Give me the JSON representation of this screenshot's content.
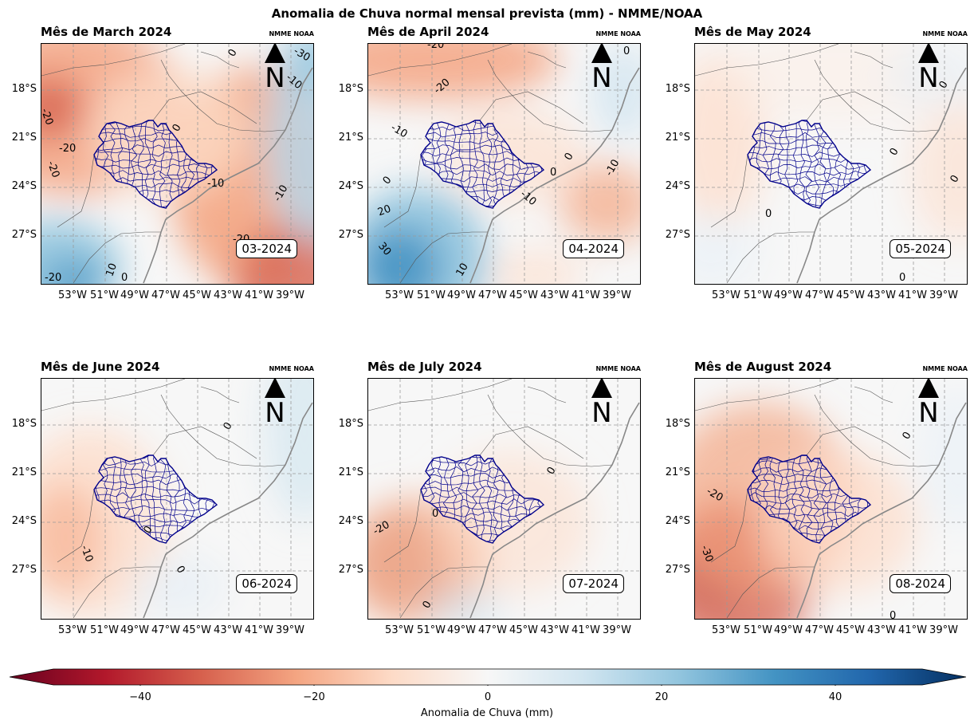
{
  "figure": {
    "title": "Anomalia de Chuva normal mensal prevista (mm) - NMME/NOAA",
    "credit": "NMME NOAA",
    "north_label": "N",
    "colormap": "RdBu",
    "colormap_colors": [
      "#67001f",
      "#b2182b",
      "#d6604d",
      "#f4a582",
      "#fddbc7",
      "#f7f7f7",
      "#d1e5f0",
      "#92c5de",
      "#4393c3",
      "#2166ac",
      "#053061"
    ]
  },
  "axes": {
    "y_ticks": [
      "18°S",
      "21°S",
      "24°S",
      "27°S"
    ],
    "x_ticks": [
      "53°W",
      "51°W",
      "49°W",
      "47°W",
      "45°W",
      "43°W",
      "41°W",
      "39°W"
    ]
  },
  "panels": [
    {
      "title": "Mês de March 2024",
      "date": "03-2024",
      "contour_labels": [
        "0",
        "-30",
        "-10",
        "-20",
        "-20",
        "-20",
        "0",
        "-20",
        "-10",
        "-10",
        "-20",
        "10",
        "0",
        "-20"
      ]
    },
    {
      "title": "Mês de April 2024",
      "date": "04-2024",
      "contour_labels": [
        "-20",
        "0",
        "-20",
        "-10",
        "0",
        "0",
        "-10",
        "0",
        "-10",
        "20",
        "30",
        "0",
        "10"
      ]
    },
    {
      "title": "Mês de May 2024",
      "date": "05-2024",
      "contour_labels": [
        "0",
        "0",
        "0",
        "0",
        "0"
      ]
    },
    {
      "title": "Mês de June 2024",
      "date": "06-2024",
      "contour_labels": [
        "0",
        "0",
        "-10",
        "0"
      ]
    },
    {
      "title": "Mês de July 2024",
      "date": "07-2024",
      "contour_labels": [
        "0",
        "0",
        "-20",
        "0"
      ]
    },
    {
      "title": "Mês de August 2024",
      "date": "08-2024",
      "contour_labels": [
        "0",
        "-20",
        "-30",
        "0"
      ]
    }
  ],
  "colorbar": {
    "label": "Anomalia de Chuva (mm)",
    "ticks": [
      "−40",
      "−20",
      "0",
      "20",
      "40"
    ],
    "range": [
      -50,
      50
    ]
  }
}
